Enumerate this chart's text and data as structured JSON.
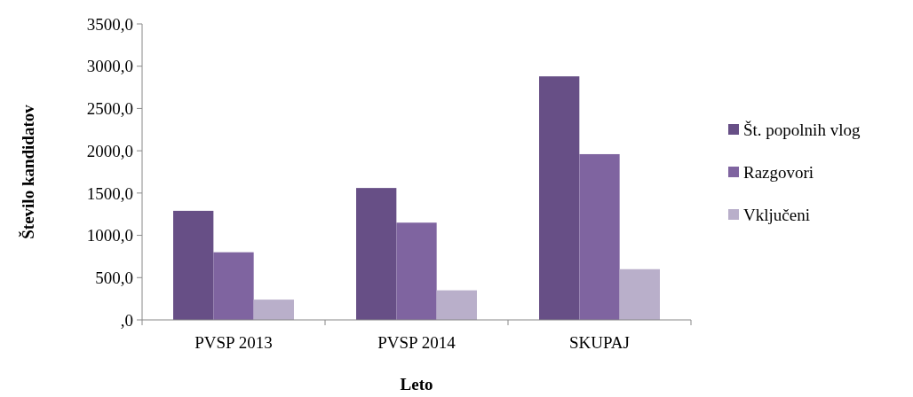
{
  "chart_data": {
    "type": "bar",
    "xlabel": "Leto",
    "ylabel": "Število kandidatov",
    "categories": [
      "PVSP 2013",
      "PVSP 2014",
      "SKUPAJ"
    ],
    "series": [
      {
        "name": "Št. popolnih vlog",
        "color": "#674f86",
        "values": [
          1290,
          1560,
          2880
        ]
      },
      {
        "name": "Razgovori",
        "color": "#7f64a0",
        "values": [
          800,
          1150,
          1960
        ]
      },
      {
        "name": "Vključeni",
        "color": "#b9afca",
        "values": [
          240,
          350,
          600
        ]
      }
    ],
    "ylim": [
      0,
      3500
    ],
    "yticks": [
      {
        "value": 0,
        "label": ",0"
      },
      {
        "value": 500,
        "label": "500,0"
      },
      {
        "value": 1000,
        "label": "1000,0"
      },
      {
        "value": 1500,
        "label": "1500,0"
      },
      {
        "value": 2000,
        "label": "2000,0"
      },
      {
        "value": 2500,
        "label": "2500,0"
      },
      {
        "value": 3000,
        "label": "3000,0"
      },
      {
        "value": 3500,
        "label": "3500,0"
      }
    ],
    "legend": "right"
  }
}
